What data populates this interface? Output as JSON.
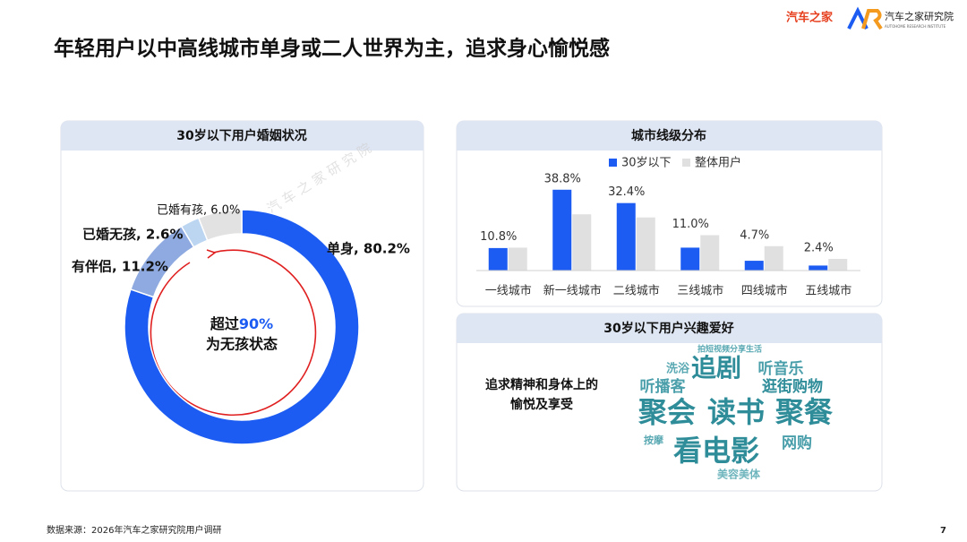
{
  "title": "年轻用户以中高线城市单身或二人世界为主，追求身心愉悦感",
  "logo_text": "汽车之家",
  "logo_subtext": "汽车之家研究院",
  "logo_tagline": "AUTOHOME RESEARCH INSTITUTE",
  "watermark": "汽 车 之 家 研 究 院",
  "chart_data": [
    {
      "type": "pie",
      "title": "30岁以下用户婚姻状况",
      "values": [
        80.2,
        11.2,
        2.6,
        6.0
      ],
      "value_labels": [
        "单身, 80.2%",
        "有伴侣, 11.2%",
        "已婚无孩, 2.6%",
        "已婚有孩, 6.0%"
      ],
      "colors": [
        "#1c5cf2",
        "#8eaae0",
        "#bcd6f2",
        "#e2e2e2"
      ],
      "annotation": {
        "prefix": "超过",
        "highlight": "90%",
        "suffix": "为无孩状态"
      }
    },
    {
      "type": "bar",
      "title": "城市线级分布",
      "categories": [
        "一线城市",
        "新一线城市",
        "二线城市",
        "三线城市",
        "四线城市",
        "五线城市"
      ],
      "series": [
        {
          "name": "30岁以下",
          "color": "#1c5cf2",
          "values": [
            10.8,
            38.8,
            32.4,
            11.0,
            4.7,
            2.4
          ],
          "value_labels": [
            "10.8%",
            "38.8%",
            "32.4%",
            "11.0%",
            "4.7%",
            "2.4%"
          ]
        },
        {
          "name": "整体用户",
          "color": "#e0e0e0",
          "values": [
            11,
            27,
            25.5,
            17,
            11.7,
            5.6
          ]
        }
      ],
      "ylim": [
        0,
        40
      ]
    }
  ],
  "interests": {
    "title": "30岁以下用户兴趣爱好",
    "caption": [
      "追求精神和身体上的",
      "愉悦及享受"
    ],
    "words": [
      "拍短视频分享生活",
      "洗浴",
      "追剧",
      "听音乐",
      "听播客",
      "逛街购物",
      "聚会",
      "读书",
      "聚餐",
      "按摩",
      "看电影",
      "网购",
      "美容美体"
    ]
  },
  "footer": {
    "source": "数据来源：2026年汽车之家研究院用户调研",
    "page": "7"
  }
}
